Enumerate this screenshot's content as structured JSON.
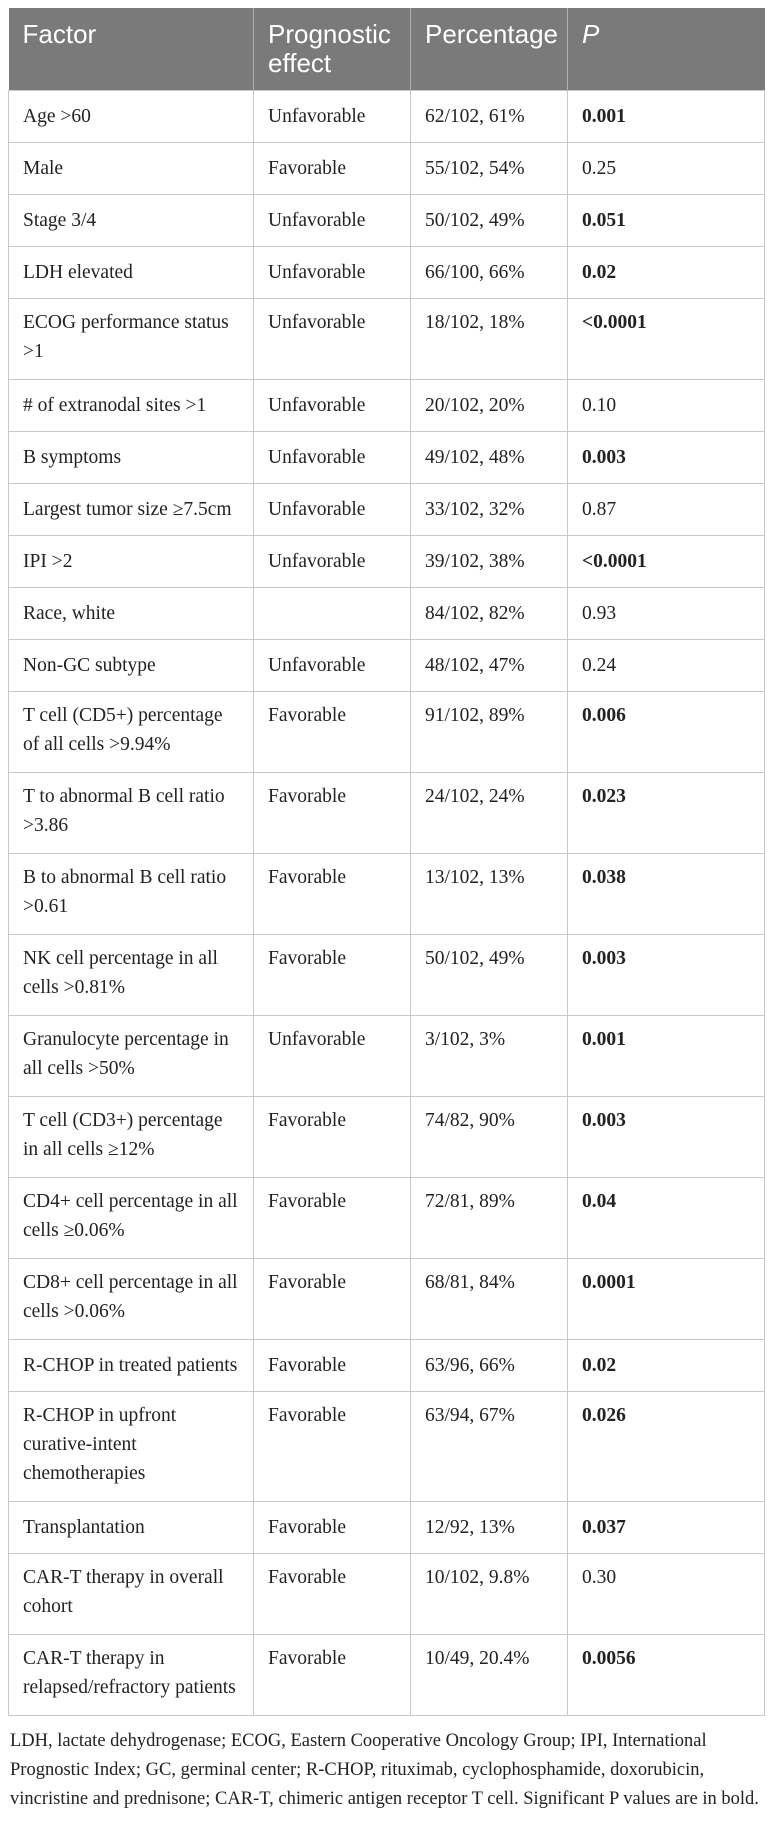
{
  "header": {
    "factor": "Factor",
    "effect": "Prognostic effect",
    "percentage": "Percentage",
    "p": "P"
  },
  "rows": [
    {
      "factor": "Age >60",
      "effect": "Unfavorable",
      "percentage": "62/102, 61%",
      "p": "0.001",
      "bold": true,
      "lines": 1
    },
    {
      "factor": "Male",
      "effect": "Favorable",
      "percentage": "55/102, 54%",
      "p": "0.25",
      "bold": false,
      "lines": 1
    },
    {
      "factor": "Stage 3/4",
      "effect": "Unfavorable",
      "percentage": "50/102, 49%",
      "p": "0.051",
      "bold": true,
      "lines": 1
    },
    {
      "factor": "LDH elevated",
      "effect": "Unfavorable",
      "percentage": "66/100, 66%",
      "p": "0.02",
      "bold": true,
      "lines": 1
    },
    {
      "factor": "ECOG performance status >1",
      "effect": "Unfavorable",
      "percentage": "18/102, 18%",
      "p": "<0.0001",
      "bold": true,
      "lines": 2
    },
    {
      "factor": "# of extranodal sites >1",
      "effect": "Unfavorable",
      "percentage": "20/102, 20%",
      "p": "0.10",
      "bold": false,
      "lines": 1
    },
    {
      "factor": "B symptoms",
      "effect": "Unfavorable",
      "percentage": "49/102, 48%",
      "p": "0.003",
      "bold": true,
      "lines": 1
    },
    {
      "factor": "Largest tumor size ≥7.5cm",
      "effect": "Unfavorable",
      "percentage": "33/102, 32%",
      "p": "0.87",
      "bold": false,
      "lines": 1
    },
    {
      "factor": "IPI >2",
      "effect": "Unfavorable",
      "percentage": "39/102, 38%",
      "p": "<0.0001",
      "bold": true,
      "lines": 1
    },
    {
      "factor": "Race, white",
      "effect": "",
      "percentage": "84/102, 82%",
      "p": "0.93",
      "bold": false,
      "lines": 1
    },
    {
      "factor": "Non-GC subtype",
      "effect": "Unfavorable",
      "percentage": "48/102, 47%",
      "p": "0.24",
      "bold": false,
      "lines": 1
    },
    {
      "factor": "T cell (CD5+) percentage of all cells >9.94%",
      "effect": "Favorable",
      "percentage": "91/102, 89%",
      "p": "0.006",
      "bold": true,
      "lines": 2
    },
    {
      "factor": "T to abnormal B cell ratio >3.86",
      "effect": "Favorable",
      "percentage": "24/102, 24%",
      "p": "0.023",
      "bold": true,
      "lines": 2
    },
    {
      "factor": "B to abnormal B cell ratio >0.61",
      "effect": "Favorable",
      "percentage": "13/102, 13%",
      "p": "0.038",
      "bold": true,
      "lines": 2
    },
    {
      "factor": "NK cell percentage in all cells >0.81%",
      "effect": "Favorable",
      "percentage": "50/102, 49%",
      "p": "0.003",
      "bold": true,
      "lines": 2
    },
    {
      "factor": "Granulocyte percentage in all cells >50%",
      "effect": "Unfavorable",
      "percentage": "3/102, 3%",
      "p": "0.001",
      "bold": true,
      "lines": 2
    },
    {
      "factor": "T cell (CD3+) percentage in all cells ≥12%",
      "effect": "Favorable",
      "percentage": "74/82, 90%",
      "p": "0.003",
      "bold": true,
      "lines": 2
    },
    {
      "factor": "CD4+ cell percentage in all cells ≥0.06%",
      "effect": "Favorable",
      "percentage": "72/81, 89%",
      "p": "0.04",
      "bold": true,
      "lines": 2
    },
    {
      "factor": "CD8+ cell percentage in all cells >0.06%",
      "effect": "Favorable",
      "percentage": "68/81, 84%",
      "p": "0.0001",
      "bold": true,
      "lines": 2
    },
    {
      "factor": "R-CHOP in treated patients",
      "effect": "Favorable",
      "percentage": "63/96, 66%",
      "p": "0.02",
      "bold": true,
      "lines": 1
    },
    {
      "factor": "R-CHOP in upfront curative-intent chemotherapies",
      "effect": "Favorable",
      "percentage": "63/94, 67%",
      "p": "0.026",
      "bold": true,
      "lines": 3
    },
    {
      "factor": "Transplantation",
      "effect": "Favorable",
      "percentage": "12/92, 13%",
      "p": "0.037",
      "bold": true,
      "lines": 1
    },
    {
      "factor": "CAR-T therapy in overall cohort",
      "effect": "Favorable",
      "percentage": "10/102, 9.8%",
      "p": "0.30",
      "bold": false,
      "lines": 2
    },
    {
      "factor": "CAR-T therapy in relapsed/refractory patients",
      "effect": "Favorable",
      "percentage": "10/49, 20.4%",
      "p": "0.0056",
      "bold": true,
      "lines": 2
    }
  ],
  "footnote": "LDH, lactate dehydrogenase; ECOG, Eastern Cooperative Oncology Group; IPI, International Prognostic Index; GC, germinal center; R-CHOP, rituximab, cyclophosphamide, doxorubicin, vincristine and prednisone; CAR-T, chimeric antigen receptor T cell. Significant P values are in bold."
}
